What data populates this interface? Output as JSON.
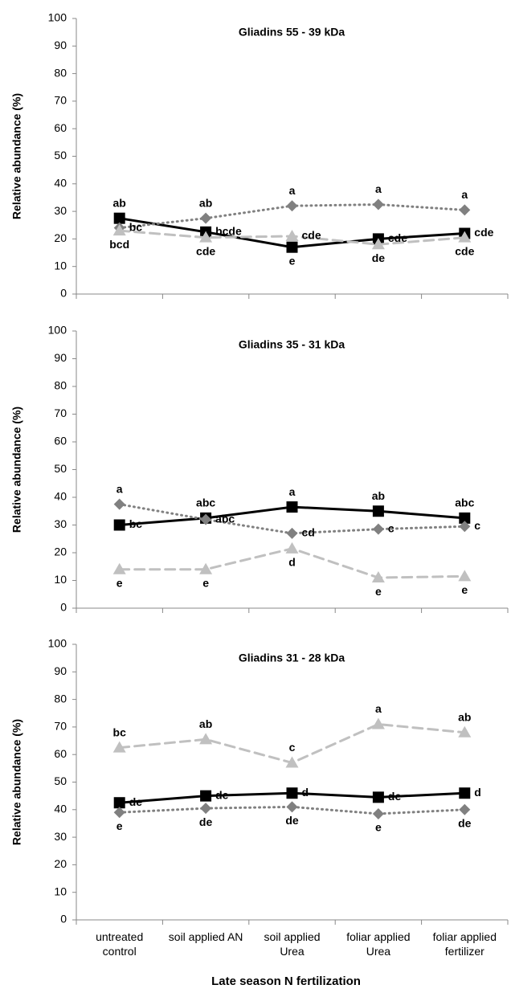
{
  "chart_data": [
    {
      "type": "line",
      "title": "Gliadins 55 - 39 kDa",
      "ylabel": "Relative abundance (%)",
      "ylim": [
        0,
        100
      ],
      "yticks": [
        0,
        10,
        20,
        30,
        40,
        50,
        60,
        70,
        80,
        90,
        100
      ],
      "series": [
        {
          "color": "#000000",
          "marker": "square",
          "linestyle": "solid",
          "values": [
            27.5,
            22.5,
            17,
            20,
            22
          ],
          "letters": [
            "ab",
            "bcde",
            "e",
            "cde",
            "cde"
          ]
        },
        {
          "color": "#808080",
          "marker": "diamond",
          "linestyle": "dotted",
          "values": [
            24,
            27.5,
            32,
            32.5,
            30.5
          ],
          "letters": [
            "bc",
            "ab",
            "a",
            "a",
            "a"
          ]
        },
        {
          "color": "#c0c0c0",
          "marker": "triangle",
          "linestyle": "dashed",
          "values": [
            23,
            20.5,
            21,
            18,
            20.5
          ],
          "letters": [
            "bcd",
            "cde",
            "cde",
            "de",
            "cde"
          ]
        }
      ]
    },
    {
      "type": "line",
      "title": "Gliadins 35 - 31 kDa",
      "ylabel": "Relative abundance (%)",
      "ylim": [
        0,
        100
      ],
      "yticks": [
        0,
        10,
        20,
        30,
        40,
        50,
        60,
        70,
        80,
        90,
        100
      ],
      "series": [
        {
          "color": "#000000",
          "marker": "square",
          "linestyle": "solid",
          "values": [
            30,
            32.5,
            36.5,
            35,
            32.5
          ],
          "letters": [
            "bc",
            "abc",
            "a",
            "ab",
            "abc"
          ]
        },
        {
          "color": "#808080",
          "marker": "diamond",
          "linestyle": "dotted",
          "values": [
            37.5,
            32,
            27,
            28.5,
            29.5
          ],
          "letters": [
            "a",
            "abc",
            "cd",
            "c",
            "c"
          ]
        },
        {
          "color": "#c0c0c0",
          "marker": "triangle",
          "linestyle": "dashed",
          "values": [
            14,
            14,
            21.5,
            11,
            11.5
          ],
          "letters": [
            "e",
            "e",
            "d",
            "e",
            "e"
          ]
        }
      ]
    },
    {
      "type": "line",
      "title": "Gliadins 31 - 28 kDa",
      "ylabel": "Relative abundance (%)",
      "xlabel": "Late season N fertilization",
      "categories": [
        "untreated control",
        "soil applied AN",
        "soil applied Urea",
        "foliar applied Urea",
        "foliar applied fertilizer"
      ],
      "ylim": [
        0,
        100
      ],
      "yticks": [
        0,
        10,
        20,
        30,
        40,
        50,
        60,
        70,
        80,
        90,
        100
      ],
      "series": [
        {
          "color": "#000000",
          "marker": "square",
          "linestyle": "solid",
          "values": [
            42.5,
            45,
            46,
            44.5,
            46
          ],
          "letters": [
            "de",
            "de",
            "d",
            "de",
            "d"
          ]
        },
        {
          "color": "#808080",
          "marker": "diamond",
          "linestyle": "dotted",
          "values": [
            39,
            40.5,
            41,
            38.5,
            40
          ],
          "letters": [
            "e",
            "de",
            "de",
            "e",
            "de"
          ]
        },
        {
          "color": "#c0c0c0",
          "marker": "triangle",
          "linestyle": "dashed",
          "values": [
            62.5,
            65.5,
            57,
            71,
            68
          ],
          "letters": [
            "bc",
            "ab",
            "c",
            "a",
            "ab"
          ]
        }
      ]
    }
  ]
}
